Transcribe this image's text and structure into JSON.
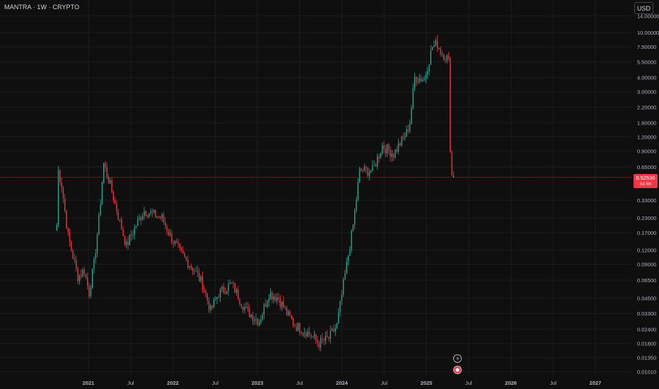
{
  "header": {
    "title": "MANTRA · 1W · CRYPTO"
  },
  "currency_button": "USD",
  "last_price": {
    "value": "0.52536",
    "countdown": "6d 6h"
  },
  "colors": {
    "up": "#22ab94",
    "down": "#f23645",
    "background": "#0f0f0f",
    "grid": "#1c1c1c",
    "text": "#d1d4dc"
  },
  "chart_data": {
    "type": "candlestick",
    "title": "MANTRA · 1W · CRYPTO",
    "scale": "log",
    "ylim": [
      0.0095,
      15.5
    ],
    "y_ticks": [
      "14.00000",
      "10.00000",
      "7.50000",
      "5.50000",
      "4.00000",
      "3.00000",
      "2.20000",
      "1.60000",
      "1.20000",
      "0.90000",
      "0.65000",
      "0.33000",
      "0.23000",
      "0.17000",
      "0.12000",
      "0.09000",
      "0.06500",
      "0.04500",
      "0.03300",
      "0.02400",
      "0.01800",
      "0.01350",
      "0.01010"
    ],
    "x_ticks": [
      "2021",
      "Jul",
      "2022",
      "Jul",
      "2023",
      "Jul",
      "2024",
      "Jul",
      "2025",
      "Jul",
      "2026",
      "Jul",
      "2027"
    ],
    "x_ticks_years": [
      2021.0,
      2021.5,
      2022.0,
      2022.5,
      2023.0,
      2023.5,
      2024.0,
      2024.5,
      2025.0,
      2025.5,
      2026.0,
      2026.5,
      2027.0
    ],
    "xlim_years": [
      2020.67,
      2027.18
    ],
    "series_path": [
      [
        "2020-08-17",
        0.2
      ],
      [
        "2020-08-24",
        0.6
      ],
      [
        "2020-09-07",
        0.45
      ],
      [
        "2020-10-05",
        0.16
      ],
      [
        "2020-11-16",
        0.07
      ],
      [
        "2020-12-14",
        0.08
      ],
      [
        "2021-01-04",
        0.05
      ],
      [
        "2021-01-25",
        0.09
      ],
      [
        "2021-02-15",
        0.22
      ],
      [
        "2021-03-08",
        0.7
      ],
      [
        "2021-04-05",
        0.45
      ],
      [
        "2021-05-10",
        0.24
      ],
      [
        "2021-06-14",
        0.13
      ],
      [
        "2021-07-26",
        0.2
      ],
      [
        "2021-08-30",
        0.27
      ],
      [
        "2021-10-04",
        0.25
      ],
      [
        "2021-11-15",
        0.23
      ],
      [
        "2021-12-20",
        0.16
      ],
      [
        "2022-02-07",
        0.11
      ],
      [
        "2022-04-04",
        0.08
      ],
      [
        "2022-05-09",
        0.06
      ],
      [
        "2022-06-13",
        0.035
      ],
      [
        "2022-07-18",
        0.05
      ],
      [
        "2022-09-12",
        0.06
      ],
      [
        "2022-11-14",
        0.035
      ],
      [
        "2023-01-09",
        0.028
      ],
      [
        "2023-02-20",
        0.05
      ],
      [
        "2023-04-03",
        0.045
      ],
      [
        "2023-05-08",
        0.033
      ],
      [
        "2023-06-12",
        0.026
      ],
      [
        "2023-07-31",
        0.023
      ],
      [
        "2023-09-25",
        0.018
      ],
      [
        "2023-11-06",
        0.02
      ],
      [
        "2023-12-11",
        0.026
      ],
      [
        "2024-01-08",
        0.06
      ],
      [
        "2024-02-19",
        0.2
      ],
      [
        "2024-03-18",
        0.6
      ],
      [
        "2024-05-13",
        0.6
      ],
      [
        "2024-06-24",
        1.0
      ],
      [
        "2024-08-12",
        0.85
      ],
      [
        "2024-10-07",
        1.3
      ],
      [
        "2024-10-21",
        1.6
      ],
      [
        "2024-11-11",
        4.0
      ],
      [
        "2024-12-23",
        3.9
      ],
      [
        "2025-01-27",
        7.5
      ],
      [
        "2025-02-17",
        8.0
      ],
      [
        "2025-03-10",
        6.5
      ],
      [
        "2025-04-07",
        5.8
      ],
      [
        "2025-04-14",
        1.0
      ],
      [
        "2025-04-21",
        0.55
      ],
      [
        "2025-05-05",
        0.52
      ]
    ],
    "grid": true
  }
}
